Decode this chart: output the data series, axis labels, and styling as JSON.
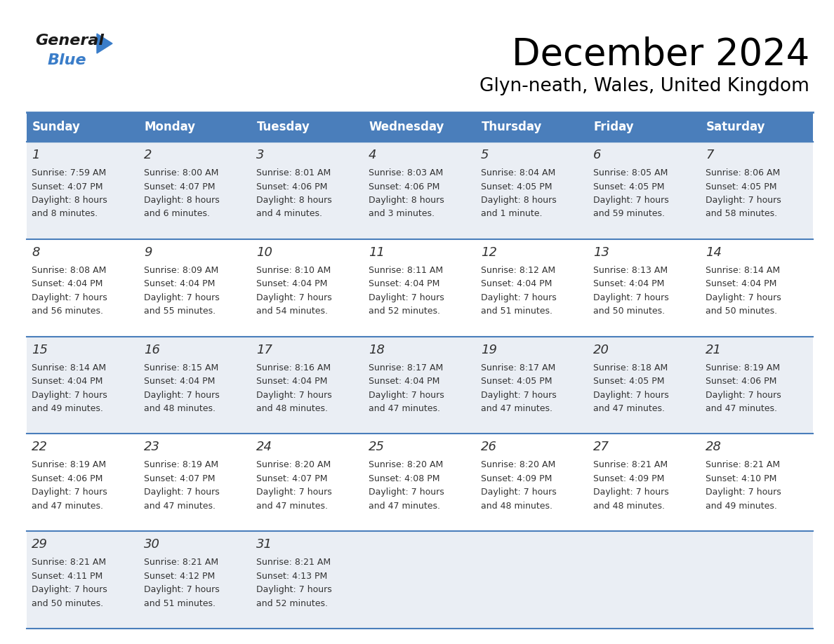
{
  "title": "December 2024",
  "subtitle": "Glyn-neath, Wales, United Kingdom",
  "days_of_week": [
    "Sunday",
    "Monday",
    "Tuesday",
    "Wednesday",
    "Thursday",
    "Friday",
    "Saturday"
  ],
  "header_bg": "#4A7EBB",
  "header_text": "#FFFFFF",
  "row_bg_even": "#EAEEF4",
  "row_bg_odd": "#FFFFFF",
  "border_color": "#4A7EBB",
  "cell_text_color": "#333333",
  "calendar_data": [
    [
      {
        "day": 1,
        "sunrise": "7:59 AM",
        "sunset": "4:07 PM",
        "daylight": "8 hours\nand 8 minutes."
      },
      {
        "day": 2,
        "sunrise": "8:00 AM",
        "sunset": "4:07 PM",
        "daylight": "8 hours\nand 6 minutes."
      },
      {
        "day": 3,
        "sunrise": "8:01 AM",
        "sunset": "4:06 PM",
        "daylight": "8 hours\nand 4 minutes."
      },
      {
        "day": 4,
        "sunrise": "8:03 AM",
        "sunset": "4:06 PM",
        "daylight": "8 hours\nand 3 minutes."
      },
      {
        "day": 5,
        "sunrise": "8:04 AM",
        "sunset": "4:05 PM",
        "daylight": "8 hours\nand 1 minute."
      },
      {
        "day": 6,
        "sunrise": "8:05 AM",
        "sunset": "4:05 PM",
        "daylight": "7 hours\nand 59 minutes."
      },
      {
        "day": 7,
        "sunrise": "8:06 AM",
        "sunset": "4:05 PM",
        "daylight": "7 hours\nand 58 minutes."
      }
    ],
    [
      {
        "day": 8,
        "sunrise": "8:08 AM",
        "sunset": "4:04 PM",
        "daylight": "7 hours\nand 56 minutes."
      },
      {
        "day": 9,
        "sunrise": "8:09 AM",
        "sunset": "4:04 PM",
        "daylight": "7 hours\nand 55 minutes."
      },
      {
        "day": 10,
        "sunrise": "8:10 AM",
        "sunset": "4:04 PM",
        "daylight": "7 hours\nand 54 minutes."
      },
      {
        "day": 11,
        "sunrise": "8:11 AM",
        "sunset": "4:04 PM",
        "daylight": "7 hours\nand 52 minutes."
      },
      {
        "day": 12,
        "sunrise": "8:12 AM",
        "sunset": "4:04 PM",
        "daylight": "7 hours\nand 51 minutes."
      },
      {
        "day": 13,
        "sunrise": "8:13 AM",
        "sunset": "4:04 PM",
        "daylight": "7 hours\nand 50 minutes."
      },
      {
        "day": 14,
        "sunrise": "8:14 AM",
        "sunset": "4:04 PM",
        "daylight": "7 hours\nand 50 minutes."
      }
    ],
    [
      {
        "day": 15,
        "sunrise": "8:14 AM",
        "sunset": "4:04 PM",
        "daylight": "7 hours\nand 49 minutes."
      },
      {
        "day": 16,
        "sunrise": "8:15 AM",
        "sunset": "4:04 PM",
        "daylight": "7 hours\nand 48 minutes."
      },
      {
        "day": 17,
        "sunrise": "8:16 AM",
        "sunset": "4:04 PM",
        "daylight": "7 hours\nand 48 minutes."
      },
      {
        "day": 18,
        "sunrise": "8:17 AM",
        "sunset": "4:04 PM",
        "daylight": "7 hours\nand 47 minutes."
      },
      {
        "day": 19,
        "sunrise": "8:17 AM",
        "sunset": "4:05 PM",
        "daylight": "7 hours\nand 47 minutes."
      },
      {
        "day": 20,
        "sunrise": "8:18 AM",
        "sunset": "4:05 PM",
        "daylight": "7 hours\nand 47 minutes."
      },
      {
        "day": 21,
        "sunrise": "8:19 AM",
        "sunset": "4:06 PM",
        "daylight": "7 hours\nand 47 minutes."
      }
    ],
    [
      {
        "day": 22,
        "sunrise": "8:19 AM",
        "sunset": "4:06 PM",
        "daylight": "7 hours\nand 47 minutes."
      },
      {
        "day": 23,
        "sunrise": "8:19 AM",
        "sunset": "4:07 PM",
        "daylight": "7 hours\nand 47 minutes."
      },
      {
        "day": 24,
        "sunrise": "8:20 AM",
        "sunset": "4:07 PM",
        "daylight": "7 hours\nand 47 minutes."
      },
      {
        "day": 25,
        "sunrise": "8:20 AM",
        "sunset": "4:08 PM",
        "daylight": "7 hours\nand 47 minutes."
      },
      {
        "day": 26,
        "sunrise": "8:20 AM",
        "sunset": "4:09 PM",
        "daylight": "7 hours\nand 48 minutes."
      },
      {
        "day": 27,
        "sunrise": "8:21 AM",
        "sunset": "4:09 PM",
        "daylight": "7 hours\nand 48 minutes."
      },
      {
        "day": 28,
        "sunrise": "8:21 AM",
        "sunset": "4:10 PM",
        "daylight": "7 hours\nand 49 minutes."
      }
    ],
    [
      {
        "day": 29,
        "sunrise": "8:21 AM",
        "sunset": "4:11 PM",
        "daylight": "7 hours\nand 50 minutes."
      },
      {
        "day": 30,
        "sunrise": "8:21 AM",
        "sunset": "4:12 PM",
        "daylight": "7 hours\nand 51 minutes."
      },
      {
        "day": 31,
        "sunrise": "8:21 AM",
        "sunset": "4:13 PM",
        "daylight": "7 hours\nand 52 minutes."
      },
      null,
      null,
      null,
      null
    ]
  ],
  "logo_color_general": "#1a1a1a",
  "logo_color_blue": "#3A7DC9",
  "logo_triangle_color": "#3A7DC9",
  "fig_width": 11.88,
  "fig_height": 9.18,
  "dpi": 100
}
